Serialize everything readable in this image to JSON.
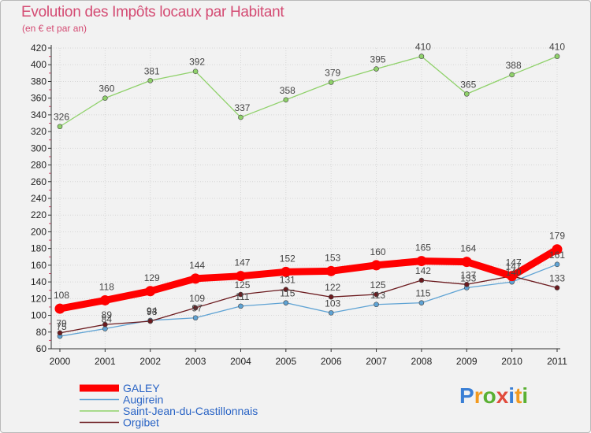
{
  "chart_data": {
    "type": "line",
    "title": "Evolution des Impôts locaux par Habitant",
    "subtitle": "(en € et par an)",
    "xlabel": "",
    "ylabel": "",
    "ylim": [
      60,
      420
    ],
    "yticks": [
      60,
      80,
      100,
      120,
      140,
      160,
      180,
      200,
      220,
      240,
      260,
      280,
      300,
      320,
      340,
      360,
      380,
      400,
      420
    ],
    "x": [
      "2000",
      "2001",
      "2002",
      "2003",
      "2004",
      "2005",
      "2006",
      "2007",
      "2008",
      "2009",
      "2010",
      "2011"
    ],
    "grid": true,
    "legend_position": "bottom-left",
    "series": [
      {
        "name": "Saint-Jean-du-Castillonnais",
        "color": "#8fd16a",
        "values": [
          326,
          360,
          381,
          392,
          337,
          358,
          379,
          395,
          410,
          365,
          388,
          410
        ]
      },
      {
        "name": "Augirein",
        "color": "#5fa3d4",
        "values": [
          75,
          84,
          94,
          97,
          111,
          115,
          103,
          113,
          115,
          133,
          140,
          161
        ]
      },
      {
        "name": "Orgibet",
        "color": "#6b1a1e",
        "values": [
          79,
          89,
          93,
          109,
          125,
          131,
          122,
          125,
          142,
          137,
          147,
          133
        ]
      },
      {
        "name": "GALEY",
        "color": "#ff0000",
        "values": [
          108,
          118,
          129,
          144,
          147,
          152,
          153,
          160,
          165,
          164,
          147,
          179
        ]
      }
    ],
    "legend_order": [
      "GALEY",
      "Augirein",
      "Saint-Jean-du-Castillonnais",
      "Orgibet"
    ]
  },
  "logo": {
    "text": "Proxiti",
    "letters": [
      "P",
      "r",
      "o",
      "x",
      "i",
      "t",
      "i"
    ],
    "colors": [
      "#3a7fd5",
      "#f39a1e",
      "#5ab033",
      "#e14b3c",
      "#3a7fd5",
      "#f39a1e",
      "#5ab033"
    ]
  }
}
